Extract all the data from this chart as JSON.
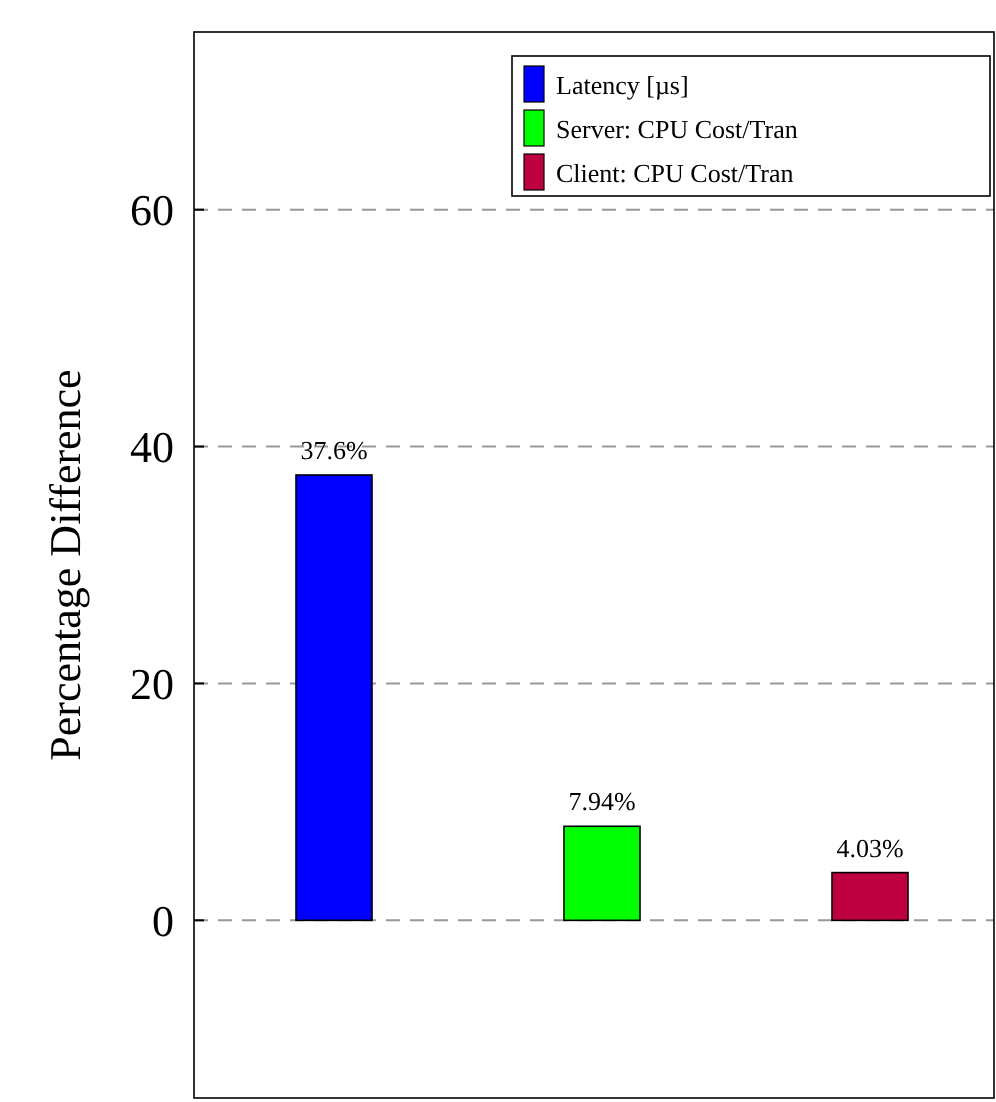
{
  "chart_data": {
    "type": "bar",
    "ylabel": "Percentage Difference",
    "categories": [
      null,
      null,
      null
    ],
    "series": [
      {
        "name": "Latency [µs]",
        "color": "#0000ff",
        "values": [
          37.6,
          null,
          null
        ],
        "value_labels": [
          "37.6%",
          null,
          null
        ]
      },
      {
        "name": "Server: CPU Cost/Tran",
        "color": "#00ff00",
        "values": [
          null,
          7.94,
          null
        ],
        "value_labels": [
          null,
          "7.94%",
          null
        ]
      },
      {
        "name": "Client: CPU Cost/Tran",
        "color": "#bf0040",
        "values": [
          null,
          null,
          4.03
        ],
        "value_labels": [
          null,
          null,
          "4.03%"
        ]
      }
    ],
    "ylim": [
      -15,
      75
    ],
    "yticks": [
      0,
      20,
      40,
      60
    ],
    "grid": "y",
    "legend": "top right"
  }
}
